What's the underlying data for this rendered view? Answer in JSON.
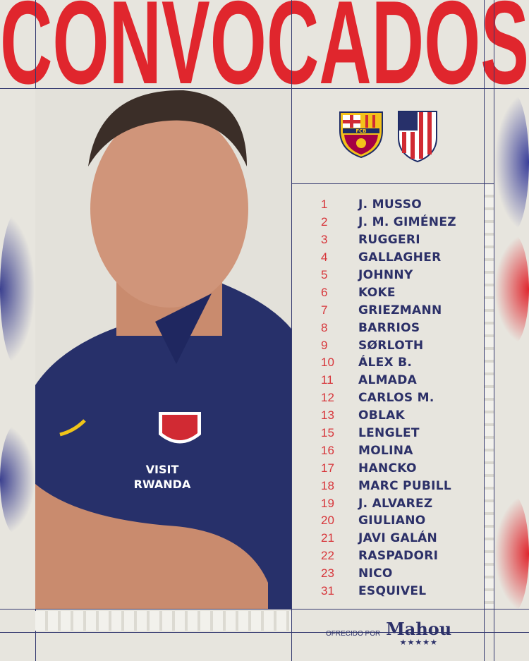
{
  "title": "CONVOCADOS",
  "crests": [
    {
      "name": "FC Barcelona",
      "letters": "FCB"
    },
    {
      "name": "Atlético de Madrid"
    }
  ],
  "squad": [
    {
      "number": "1",
      "name": "J. MUSSO"
    },
    {
      "number": "2",
      "name": "J. M. GIMÉNEZ"
    },
    {
      "number": "3",
      "name": "RUGGERI"
    },
    {
      "number": "4",
      "name": "GALLAGHER"
    },
    {
      "number": "5",
      "name": "JOHNNY"
    },
    {
      "number": "6",
      "name": "KOKE"
    },
    {
      "number": "7",
      "name": "GRIEZMANN"
    },
    {
      "number": "8",
      "name": "BARRIOS"
    },
    {
      "number": "9",
      "name": "SØRLOTH"
    },
    {
      "number": "10",
      "name": "ÁLEX B."
    },
    {
      "number": "11",
      "name": "ALMADA"
    },
    {
      "number": "12",
      "name": "CARLOS M."
    },
    {
      "number": "13",
      "name": "OBLAK"
    },
    {
      "number": "15",
      "name": "LENGLET"
    },
    {
      "number": "16",
      "name": "MOLINA"
    },
    {
      "number": "17",
      "name": "HANCKO"
    },
    {
      "number": "18",
      "name": "MARC PUBILL"
    },
    {
      "number": "19",
      "name": "J. ALVAREZ"
    },
    {
      "number": "20",
      "name": "GIULIANO"
    },
    {
      "number": "21",
      "name": "JAVI GALÁN"
    },
    {
      "number": "22",
      "name": "RASPADORI"
    },
    {
      "number": "23",
      "name": "NICO"
    },
    {
      "number": "31",
      "name": "ESQUIVEL"
    }
  ],
  "shirt_text": {
    "line1": "VISIT",
    "line2": "RWANDA"
  },
  "sponsor": {
    "label": "OFRECIDO POR",
    "brand": "Mahou",
    "stars": "★★★★★"
  },
  "colors": {
    "red": "#e0262d",
    "navy": "#2c3068",
    "background": "#e7e5de"
  }
}
